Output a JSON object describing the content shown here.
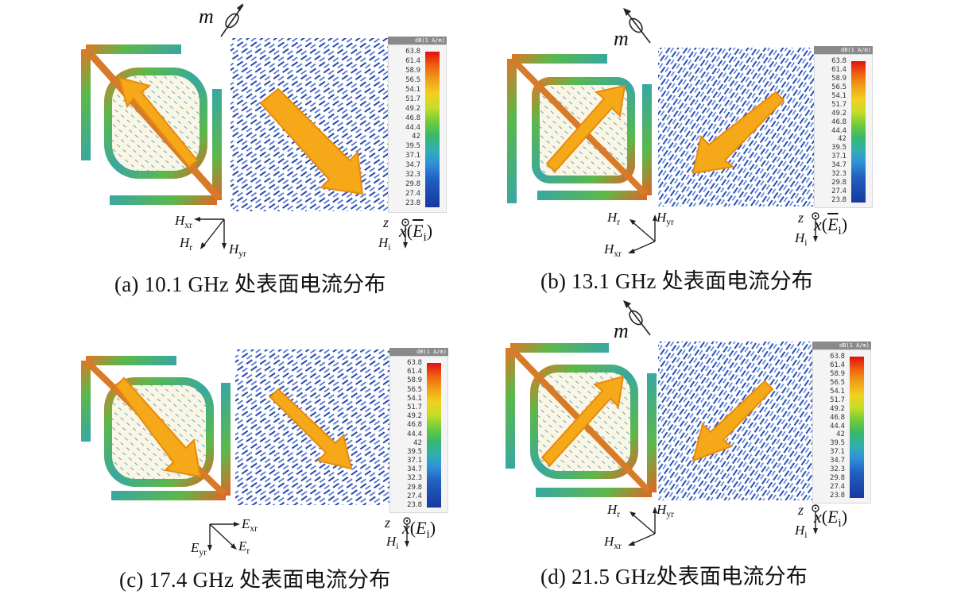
{
  "panels": [
    {
      "caption": "(a) 10.1 GHz 处表面电流分布"
    },
    {
      "caption": "(b) 13.1 GHz 处表面电流分布"
    },
    {
      "caption": "(c) 17.4 GHz 处表面电流分布"
    },
    {
      "caption": "(d) 21.5 GHz处表面电流分布"
    }
  ],
  "colorbar": {
    "header": "dB(1 A/m)",
    "ticks": [
      "63.8",
      "61.4",
      "58.9",
      "56.5",
      "54.1",
      "51.7",
      "49.2",
      "46.8",
      "44.4",
      "42",
      "39.5",
      "37.1",
      "34.7",
      "32.3",
      "29.8",
      "27.4",
      "23.8"
    ]
  },
  "symbols": {
    "m": "m",
    "z": "z",
    "x": "x",
    "E": "E",
    "H": "H",
    "sub_i": "i",
    "sub_r": "r",
    "sub_xr": "xr",
    "sub_yr": "yr"
  },
  "colors": {
    "arrow": "#f5a818",
    "arrow_edge": "#e88a10",
    "field": "#2a4ca8",
    "ring": "#3fae6a"
  }
}
